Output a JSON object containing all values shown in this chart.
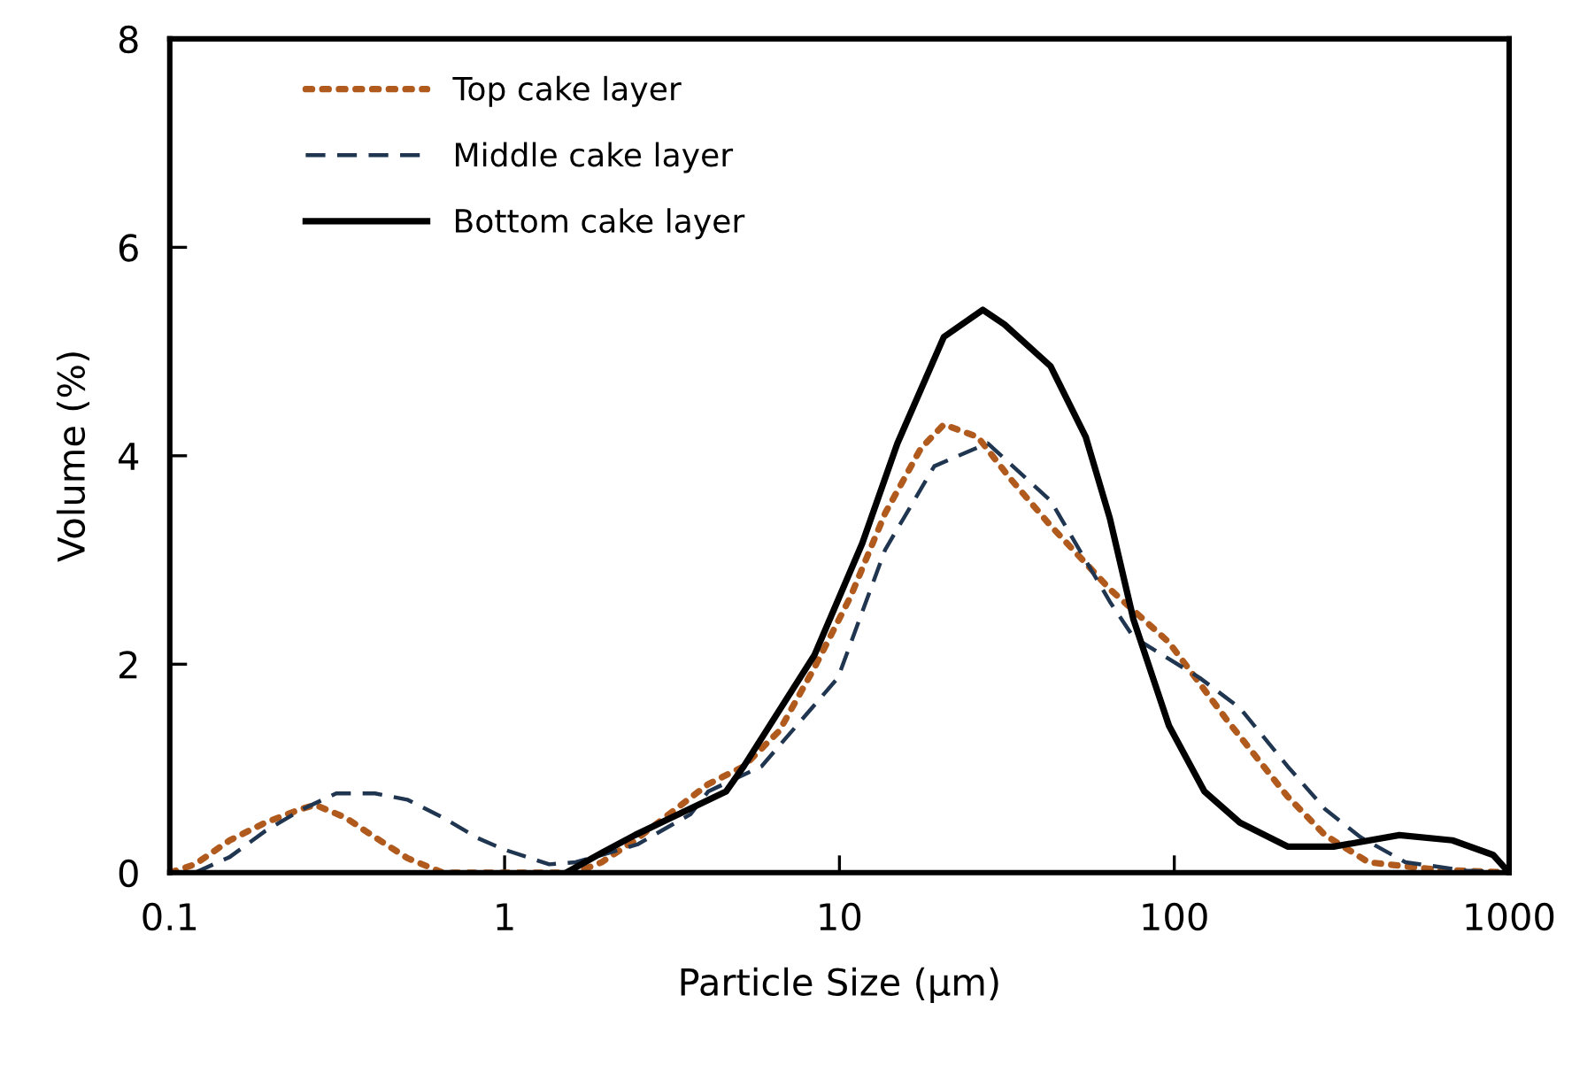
{
  "chart_data": {
    "type": "line",
    "xlabel": "Particle Size (μm)",
    "ylabel": "Volume (%)",
    "log": "x",
    "xlim": [
      0.1,
      1000
    ],
    "xticks": [
      0.1,
      1,
      10,
      100,
      1000
    ],
    "ylim": [
      0,
      8
    ],
    "yticks": [
      0,
      2,
      4,
      6,
      8
    ],
    "grid": false,
    "legend": "top left",
    "marker": "none",
    "series": [
      {
        "name": "Top cake layer",
        "color": "#b05a1e",
        "line_style": "dotted",
        "x": [
          0.1,
          0.119,
          0.151,
          0.193,
          0.246,
          0.272,
          0.334,
          0.401,
          0.512,
          0.653,
          1.63,
          1.95,
          2.45,
          4.06,
          5.18,
          6.61,
          8.43,
          10.8,
          13.7,
          17.5,
          20.5,
          25.9,
          32.2,
          42.7,
          64.2,
          96.4,
          144,
          218,
          282,
          380,
          600,
          1000
        ],
        "values": [
          0,
          0.08,
          0.31,
          0.48,
          0.61,
          0.65,
          0.53,
          0.36,
          0.14,
          0,
          0,
          0.1,
          0.31,
          0.85,
          1.02,
          1.36,
          1.97,
          2.65,
          3.45,
          4.07,
          4.3,
          4.18,
          3.79,
          3.33,
          2.72,
          2.21,
          1.46,
          0.73,
          0.36,
          0.1,
          0.03,
          0
        ]
      },
      {
        "name": "Middle cake layer",
        "color": "#1f3550",
        "line_style": "dashed",
        "x": [
          0.119,
          0.151,
          0.193,
          0.246,
          0.314,
          0.41,
          0.512,
          0.653,
          0.833,
          1,
          1.36,
          1.63,
          1.95,
          2.49,
          3.59,
          4.06,
          5.85,
          9.9,
          13.7,
          19.2,
          27.7,
          42.7,
          64.2,
          75.5,
          119,
          157,
          218,
          282,
          360,
          490,
          740,
          1000
        ],
        "values": [
          0,
          0.15,
          0.4,
          0.6,
          0.76,
          0.76,
          0.7,
          0.53,
          0.33,
          0.22,
          0.08,
          0.1,
          0.17,
          0.27,
          0.56,
          0.78,
          1.02,
          1.87,
          3.1,
          3.9,
          4.12,
          3.57,
          2.6,
          2.26,
          1.87,
          1.58,
          1.02,
          0.61,
          0.34,
          0.1,
          0.02,
          0
        ]
      },
      {
        "name": "Bottom cake layer",
        "color": "#000000",
        "line_style": "solid",
        "x": [
          1.53,
          1.95,
          2.45,
          4.59,
          5.18,
          8.43,
          11.7,
          14.9,
          20.5,
          26.8,
          31.1,
          42.7,
          54.4,
          64.2,
          75.5,
          96.4,
          123,
          157,
          218,
          299,
          470,
          677,
          896,
          1000
        ],
        "values": [
          0,
          0.19,
          0.36,
          0.78,
          1.02,
          2.09,
          3.16,
          4.12,
          5.14,
          5.4,
          5.26,
          4.86,
          4.18,
          3.4,
          2.43,
          1.41,
          0.78,
          0.48,
          0.25,
          0.25,
          0.36,
          0.31,
          0.17,
          0
        ]
      }
    ]
  }
}
